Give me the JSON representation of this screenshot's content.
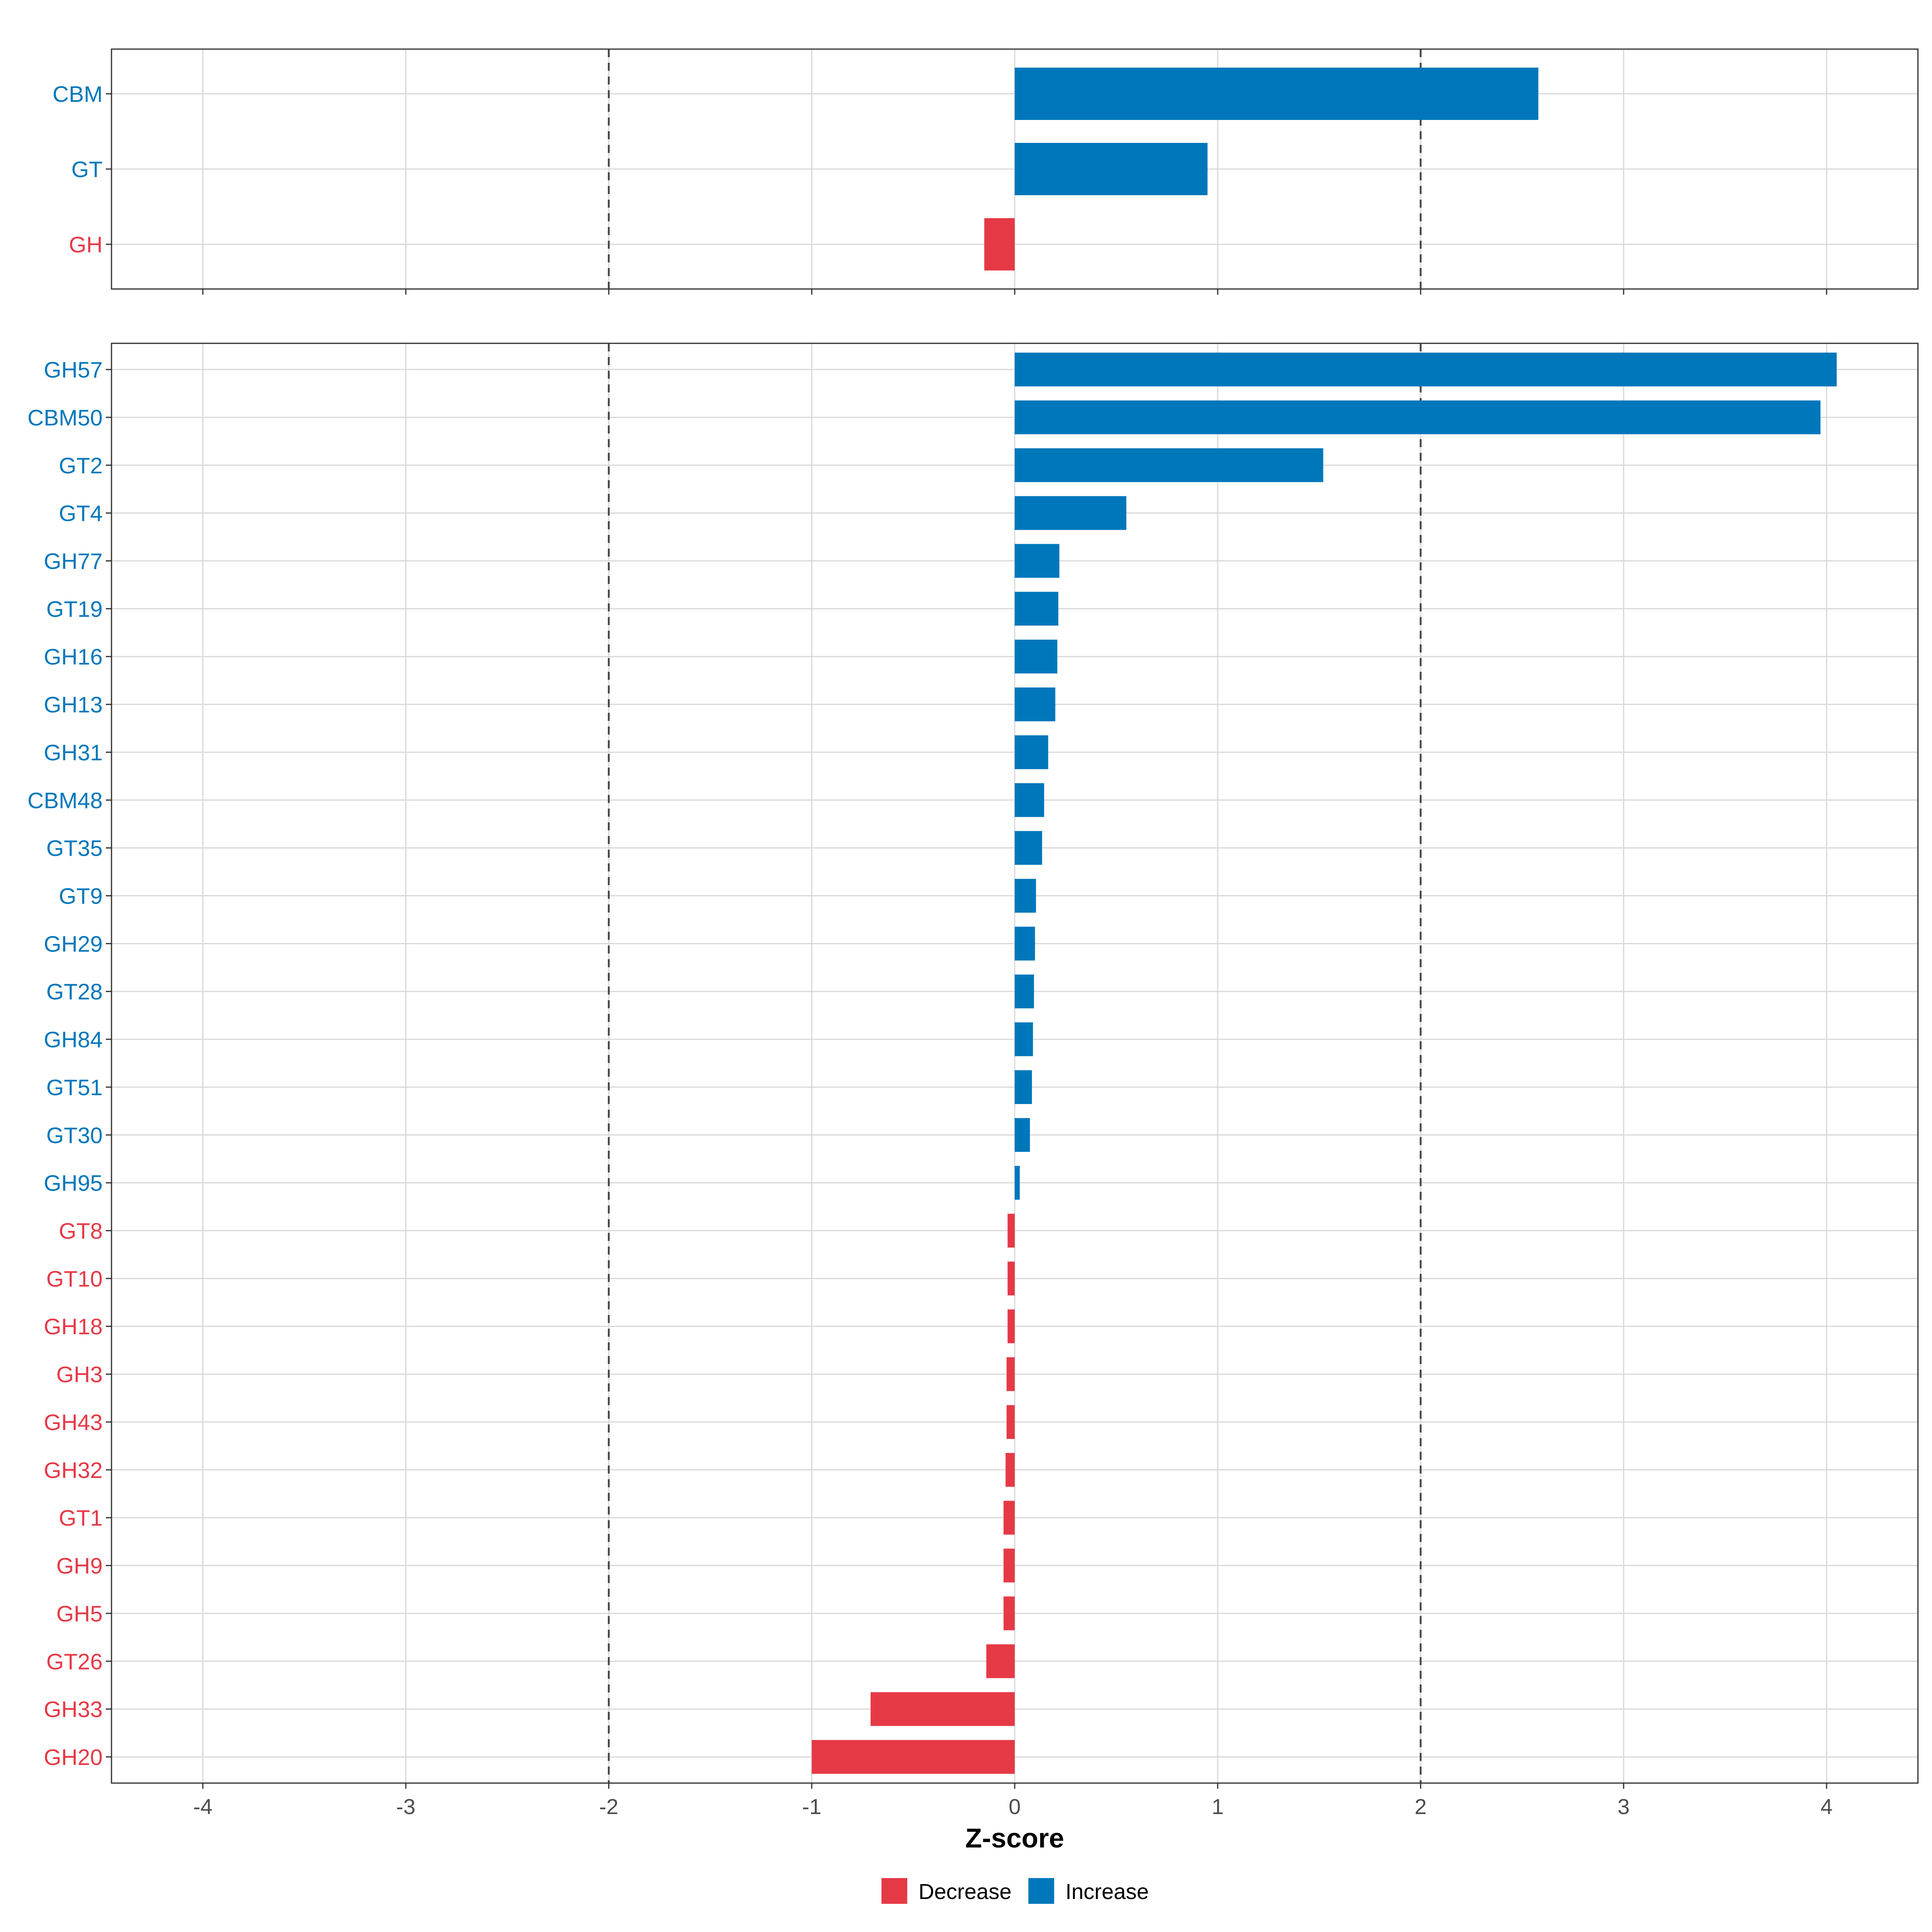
{
  "colors": {
    "increase": "#0077BB",
    "decrease": "#E63946"
  },
  "chart_data": [
    {
      "type": "bar",
      "orientation": "horizontal",
      "panel": "top",
      "categories": [
        "CBM",
        "GT",
        "GH"
      ],
      "values": [
        2.58,
        0.95,
        -0.15
      ],
      "xlim": [
        -4.45,
        4.45
      ],
      "xticks": [
        -4,
        -3,
        -2,
        -1,
        0,
        1,
        2,
        3,
        4
      ],
      "reference_lines": [
        -2,
        2
      ]
    },
    {
      "type": "bar",
      "orientation": "horizontal",
      "panel": "bottom",
      "categories": [
        "GH57",
        "CBM50",
        "GT2",
        "GT4",
        "GH77",
        "GT19",
        "GH16",
        "GH13",
        "GH31",
        "CBM48",
        "GT35",
        "GT9",
        "GH29",
        "GT28",
        "GH84",
        "GT51",
        "GT30",
        "GH95",
        "GT8",
        "GT10",
        "GH18",
        "GH3",
        "GH43",
        "GH32",
        "GT1",
        "GH9",
        "GH5",
        "GT26",
        "GH33",
        "GH20"
      ],
      "values": [
        4.05,
        3.97,
        1.52,
        0.55,
        0.22,
        0.215,
        0.21,
        0.2,
        0.165,
        0.145,
        0.135,
        0.105,
        0.1,
        0.095,
        0.09,
        0.085,
        0.075,
        0.025,
        -0.035,
        -0.035,
        -0.035,
        -0.04,
        -0.04,
        -0.045,
        -0.055,
        -0.055,
        -0.055,
        -0.14,
        -0.71,
        -1.0
      ],
      "xlim": [
        -4.45,
        4.45
      ],
      "xticks": [
        -4,
        -3,
        -2,
        -1,
        0,
        1,
        2,
        3,
        4
      ],
      "xlabel": "Z-score",
      "reference_lines": [
        -2,
        2
      ]
    }
  ],
  "legend": {
    "items": [
      {
        "label": "Decrease",
        "color": "#E63946"
      },
      {
        "label": "Increase",
        "color": "#0077BB"
      }
    ],
    "position": "bottom"
  }
}
